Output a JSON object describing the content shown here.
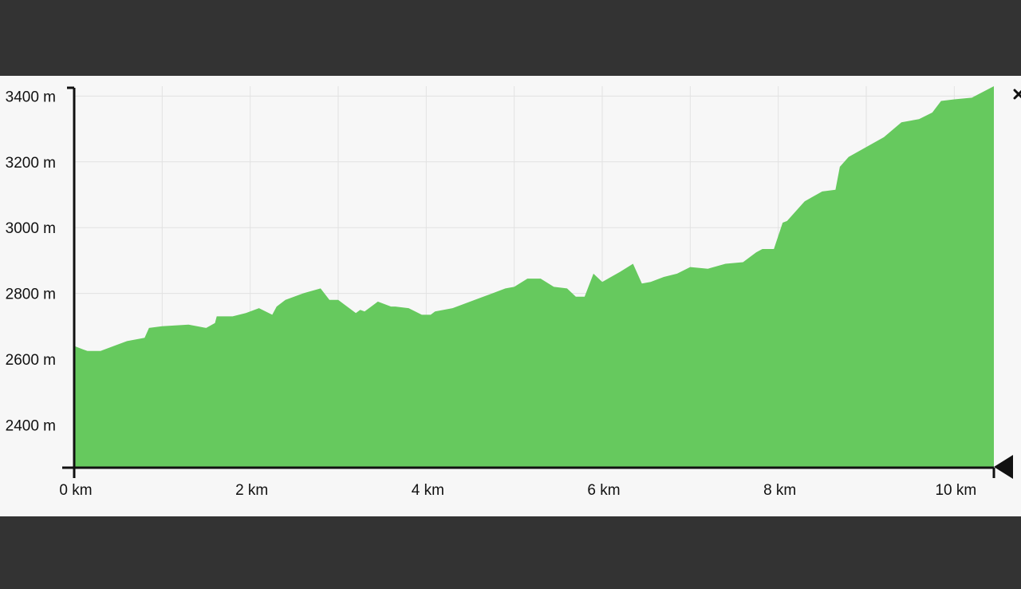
{
  "colors": {
    "background": "#333333",
    "panel": "#f7f7f7",
    "fill": "#66c95e",
    "axis": "#111111",
    "grid": "#e2e2e2"
  },
  "close_icon": "close-icon",
  "end_marker_icon": "triangle-marker-icon",
  "chart_data": {
    "type": "area",
    "xlim": [
      0,
      10.45
    ],
    "ylim": [
      2270,
      3430
    ],
    "grid": true,
    "x_ticks": [
      {
        "value": 0,
        "label": "0 km"
      },
      {
        "value": 2,
        "label": "2 km"
      },
      {
        "value": 4,
        "label": "4 km"
      },
      {
        "value": 6,
        "label": "6 km"
      },
      {
        "value": 8,
        "label": "8 km"
      },
      {
        "value": 10,
        "label": "10 km"
      }
    ],
    "y_ticks": [
      {
        "value": 2400,
        "label": "2400 m"
      },
      {
        "value": 2600,
        "label": "2600 m"
      },
      {
        "value": 2800,
        "label": "2800 m"
      },
      {
        "value": 3000,
        "label": "3000 m"
      },
      {
        "value": 3200,
        "label": "3200 m"
      },
      {
        "value": 3400,
        "label": "3400 m"
      }
    ],
    "series": [
      {
        "x": [
          0,
          0.1,
          0.15,
          0.3,
          0.45,
          0.6,
          0.8,
          0.85,
          1.0,
          1.3,
          1.5,
          1.6,
          1.62,
          1.7,
          1.8,
          1.95,
          2.1,
          2.25,
          2.3,
          2.4,
          2.6,
          2.8,
          2.9,
          3.0,
          3.2,
          3.25,
          3.3,
          3.45,
          3.6,
          3.65,
          3.8,
          3.95,
          4.05,
          4.1,
          4.3,
          4.5,
          4.6,
          4.75,
          4.9,
          5.0,
          5.15,
          5.3,
          5.45,
          5.6,
          5.7,
          5.8,
          5.9,
          6.0,
          6.2,
          6.35,
          6.45,
          6.55,
          6.7,
          6.85,
          7.0,
          7.2,
          7.4,
          7.6,
          7.75,
          7.82,
          7.95,
          8.05,
          8.1,
          8.3,
          8.5,
          8.65,
          8.7,
          8.8,
          9.0,
          9.2,
          9.4,
          9.6,
          9.75,
          9.85,
          10.0,
          10.2,
          10.45
        ],
        "y": [
          2640,
          2630,
          2625,
          2625,
          2640,
          2655,
          2665,
          2695,
          2700,
          2705,
          2695,
          2710,
          2730,
          2730,
          2730,
          2740,
          2755,
          2735,
          2760,
          2780,
          2800,
          2815,
          2780,
          2780,
          2740,
          2750,
          2745,
          2775,
          2760,
          2760,
          2755,
          2735,
          2735,
          2745,
          2755,
          2775,
          2785,
          2800,
          2815,
          2820,
          2845,
          2845,
          2820,
          2815,
          2790,
          2790,
          2860,
          2835,
          2865,
          2890,
          2830,
          2835,
          2850,
          2860,
          2880,
          2875,
          2890,
          2895,
          2925,
          2935,
          2935,
          3015,
          3020,
          3080,
          3110,
          3115,
          3185,
          3215,
          3245,
          3275,
          3320,
          3330,
          3350,
          3385,
          3390,
          3395,
          3430
        ]
      }
    ]
  }
}
